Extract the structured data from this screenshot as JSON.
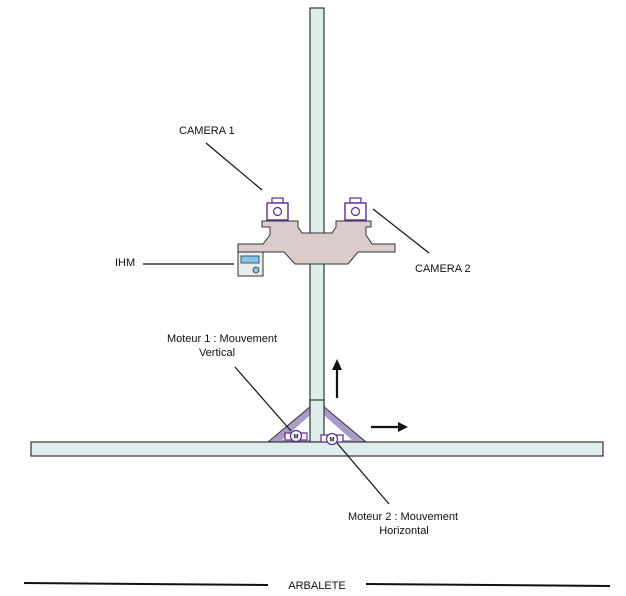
{
  "labels": {
    "camera1": "CAMERA 1",
    "camera2": "CAMERA 2",
    "ihm": "IHM",
    "moteur1_line1": "Moteur 1 : Mouvement",
    "moteur1_line2": "Vertical",
    "moteur2_line1": "Moteur 2 : Mouvement",
    "moteur2_line2": "Horizontal",
    "motor_symbol": "M",
    "footer": "ARBALETE"
  },
  "colors": {
    "frame_fill": "#dfeeed",
    "frame_stroke": "#333333",
    "brace_fill": "#a99bc8",
    "carriage_fill": "#d9cccb",
    "camera_stroke": "#5a2d91",
    "ihm_screen": "#7fc6e8",
    "leader": "#111111",
    "arrow": "#111111"
  },
  "icons": {
    "camera": "camera-icon",
    "motor": "motor-icon",
    "ihm": "ihm-panel-icon",
    "arrow_up": "arrow-up-icon",
    "arrow_right": "arrow-right-icon"
  }
}
